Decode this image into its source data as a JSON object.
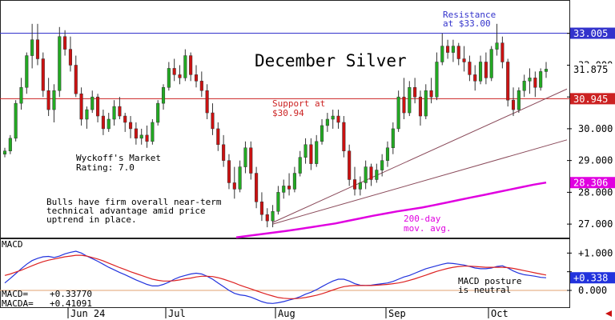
{
  "chart_data": {
    "type": "candlestick",
    "title": "December Silver",
    "x_labels": [
      "Jun 24",
      "Jul",
      "Aug",
      "Sep",
      "Oct"
    ],
    "y_ticks": [
      27.0,
      28.0,
      29.0,
      30.0,
      31.0,
      32.0,
      33.0
    ],
    "y_tick_labels": [
      "27.000",
      "28.000",
      "29.000",
      "30.000",
      "",
      "32.000",
      ""
    ],
    "ylim": [
      26.6,
      34.0
    ],
    "grid": false,
    "colors": {
      "up": "#22aa22",
      "down": "#cc1111",
      "ma": "#e000e0",
      "resistance": "#3333cc",
      "support": "#cc2222",
      "trend": "#8a4a5a"
    },
    "price_labels": {
      "resistance": {
        "value": 33.005,
        "text": "33.005"
      },
      "last": {
        "value": 31.875,
        "text": "31.875"
      },
      "support": {
        "value": 30.945,
        "text": "30.945"
      },
      "ma": {
        "value": 28.306,
        "text": "28.306"
      }
    },
    "annotations": {
      "resistance": [
        "Resistance",
        "at $33.00"
      ],
      "support": [
        "Support at",
        "$30.94"
      ],
      "wyckoff": [
        "Wyckoff's Market",
        "Rating: 7.0"
      ],
      "comment": [
        "Bulls have firm overall near-term",
        "technical advantage amid price",
        "uptrend in place."
      ],
      "ma": [
        "200-day",
        "mov. avg."
      ]
    },
    "candles": [
      [
        29.2,
        29.4,
        29.1,
        29.3
      ],
      [
        29.3,
        29.8,
        29.2,
        29.7
      ],
      [
        29.7,
        30.9,
        29.6,
        30.8
      ],
      [
        30.8,
        31.6,
        30.6,
        31.3
      ],
      [
        31.3,
        32.4,
        31.1,
        32.3
      ],
      [
        32.3,
        33.3,
        31.9,
        32.8
      ],
      [
        32.8,
        33.3,
        32.0,
        32.2
      ],
      [
        32.2,
        32.4,
        31.0,
        31.2
      ],
      [
        31.2,
        31.6,
        30.4,
        30.6
      ],
      [
        30.6,
        31.4,
        30.2,
        31.2
      ],
      [
        31.2,
        33.2,
        31.0,
        32.9
      ],
      [
        32.9,
        33.1,
        32.3,
        32.5
      ],
      [
        32.5,
        32.9,
        31.8,
        32.0
      ],
      [
        32.0,
        32.3,
        31.0,
        31.1
      ],
      [
        31.1,
        31.3,
        30.1,
        30.3
      ],
      [
        30.3,
        30.7,
        30.0,
        30.6
      ],
      [
        30.6,
        31.2,
        30.5,
        31.0
      ],
      [
        31.0,
        31.1,
        30.2,
        30.4
      ],
      [
        30.4,
        30.6,
        29.8,
        30.0
      ],
      [
        30.0,
        30.5,
        29.9,
        30.3
      ],
      [
        30.3,
        30.9,
        30.1,
        30.7
      ],
      [
        30.7,
        31.0,
        30.3,
        30.4
      ],
      [
        30.4,
        30.5,
        29.9,
        30.2
      ],
      [
        30.2,
        30.4,
        29.7,
        30.0
      ],
      [
        30.0,
        30.2,
        29.5,
        29.7
      ],
      [
        29.7,
        30.0,
        29.5,
        29.8
      ],
      [
        29.8,
        30.1,
        29.4,
        29.6
      ],
      [
        29.6,
        30.3,
        29.5,
        30.2
      ],
      [
        30.2,
        30.9,
        30.1,
        30.8
      ],
      [
        30.8,
        31.4,
        30.6,
        31.3
      ],
      [
        31.3,
        32.1,
        31.2,
        31.9
      ],
      [
        31.9,
        32.2,
        31.5,
        31.7
      ],
      [
        31.7,
        32.0,
        31.4,
        31.6
      ],
      [
        31.6,
        32.5,
        31.5,
        32.3
      ],
      [
        32.3,
        32.4,
        31.5,
        31.7
      ],
      [
        31.7,
        32.0,
        31.3,
        31.5
      ],
      [
        31.5,
        31.8,
        31.0,
        31.2
      ],
      [
        31.2,
        31.4,
        30.3,
        30.5
      ],
      [
        30.5,
        30.8,
        29.8,
        30.0
      ],
      [
        30.0,
        30.2,
        29.3,
        29.5
      ],
      [
        29.5,
        29.8,
        28.8,
        29.0
      ],
      [
        29.0,
        29.2,
        28.1,
        28.3
      ],
      [
        28.3,
        28.8,
        27.8,
        28.1
      ],
      [
        28.1,
        29.0,
        28.0,
        28.8
      ],
      [
        28.8,
        29.6,
        28.6,
        29.4
      ],
      [
        29.4,
        29.6,
        28.4,
        28.6
      ],
      [
        28.6,
        28.8,
        27.5,
        27.7
      ],
      [
        27.7,
        28.0,
        27.1,
        27.3
      ],
      [
        27.3,
        27.5,
        26.9,
        27.1
      ],
      [
        27.1,
        27.6,
        26.9,
        27.4
      ],
      [
        27.4,
        28.2,
        27.3,
        28.0
      ],
      [
        28.0,
        28.4,
        27.8,
        28.2
      ],
      [
        28.2,
        28.6,
        27.9,
        28.1
      ],
      [
        28.1,
        28.8,
        28.0,
        28.6
      ],
      [
        28.6,
        29.3,
        28.5,
        29.1
      ],
      [
        29.1,
        29.7,
        28.9,
        29.5
      ],
      [
        29.5,
        29.7,
        28.7,
        28.9
      ],
      [
        28.9,
        29.8,
        28.8,
        29.6
      ],
      [
        29.6,
        30.3,
        29.5,
        30.1
      ],
      [
        30.1,
        30.5,
        29.9,
        30.3
      ],
      [
        30.3,
        30.6,
        30.0,
        30.4
      ],
      [
        30.4,
        30.6,
        30.0,
        30.2
      ],
      [
        30.2,
        30.4,
        29.1,
        29.3
      ],
      [
        29.3,
        29.5,
        28.2,
        28.4
      ],
      [
        28.4,
        28.8,
        27.9,
        28.1
      ],
      [
        28.1,
        28.5,
        27.9,
        28.3
      ],
      [
        28.3,
        29.0,
        28.1,
        28.8
      ],
      [
        28.8,
        28.9,
        28.2,
        28.4
      ],
      [
        28.4,
        28.9,
        28.3,
        28.7
      ],
      [
        28.7,
        29.2,
        28.5,
        29.0
      ],
      [
        29.0,
        29.6,
        28.8,
        29.4
      ],
      [
        29.4,
        30.2,
        29.2,
        30.0
      ],
      [
        30.0,
        31.2,
        29.9,
        31.0
      ],
      [
        31.0,
        31.6,
        30.3,
        30.5
      ],
      [
        30.5,
        31.5,
        30.4,
        31.3
      ],
      [
        31.3,
        31.6,
        30.8,
        31.0
      ],
      [
        31.0,
        31.2,
        30.1,
        30.4
      ],
      [
        30.4,
        31.4,
        30.3,
        31.2
      ],
      [
        31.2,
        31.6,
        30.8,
        31.0
      ],
      [
        31.0,
        32.4,
        30.9,
        32.1
      ],
      [
        32.1,
        33.0,
        32.0,
        32.6
      ],
      [
        32.6,
        32.8,
        32.2,
        32.4
      ],
      [
        32.4,
        32.8,
        32.1,
        32.6
      ],
      [
        32.6,
        32.7,
        32.0,
        32.2
      ],
      [
        32.2,
        32.6,
        31.8,
        32.1
      ],
      [
        32.1,
        32.3,
        31.5,
        31.7
      ],
      [
        31.7,
        32.0,
        31.2,
        31.5
      ],
      [
        31.5,
        32.3,
        31.4,
        32.1
      ],
      [
        32.1,
        32.4,
        31.4,
        31.6
      ],
      [
        31.6,
        32.6,
        31.5,
        32.5
      ],
      [
        32.5,
        33.3,
        32.3,
        32.7
      ],
      [
        32.7,
        32.9,
        31.9,
        32.1
      ],
      [
        32.1,
        32.2,
        30.7,
        30.9
      ],
      [
        30.9,
        31.3,
        30.4,
        30.6
      ],
      [
        30.6,
        31.3,
        30.5,
        31.2
      ],
      [
        31.2,
        31.7,
        31.0,
        31.5
      ],
      [
        31.5,
        31.9,
        31.1,
        31.6
      ],
      [
        31.6,
        31.8,
        31.0,
        31.3
      ],
      [
        31.3,
        31.9,
        31.2,
        31.8
      ],
      [
        31.8,
        32.1,
        31.6,
        31.875
      ]
    ],
    "ma": [
      26.58,
      26.63,
      26.68,
      26.73,
      26.78,
      26.84,
      26.9,
      26.96,
      27.02,
      27.1,
      27.18,
      27.26,
      27.33,
      27.4,
      27.46,
      27.52,
      27.6,
      27.68,
      27.76,
      27.84,
      27.92,
      28.0,
      28.08,
      28.16,
      28.24,
      28.306
    ],
    "trend_lines": {
      "line1": [
        [
          27.05,
          49
        ],
        [
          31.25,
          100
        ]
      ],
      "line2": [
        [
          27.0,
          49
        ],
        [
          29.65,
          100
        ]
      ]
    },
    "macd": {
      "label": "MACD",
      "readout": [
        {
          "name": "MACD=",
          "value": "+0.33770"
        },
        {
          "name": "MACDA=",
          "value": "+0.41091"
        }
      ],
      "y_ticks": [
        0.0,
        0.5,
        1.0
      ],
      "y_tick_labels": [
        "0.000",
        "",
        "+1.000"
      ],
      "ylim": [
        -0.45,
        1.35
      ],
      "current": {
        "value": 0.338,
        "text": "+0.338"
      },
      "zero_value": 0.0,
      "note": [
        "MACD posture",
        "is neutral"
      ],
      "macd": [
        0.2,
        0.32,
        0.45,
        0.58,
        0.7,
        0.8,
        0.86,
        0.9,
        0.91,
        0.88,
        0.92,
        0.98,
        1.02,
        1.05,
        1.0,
        0.92,
        0.85,
        0.78,
        0.7,
        0.62,
        0.55,
        0.48,
        0.42,
        0.35,
        0.28,
        0.22,
        0.16,
        0.12,
        0.12,
        0.16,
        0.22,
        0.3,
        0.36,
        0.4,
        0.44,
        0.46,
        0.44,
        0.38,
        0.3,
        0.2,
        0.1,
        0.0,
        -0.08,
        -0.12,
        -0.14,
        -0.18,
        -0.24,
        -0.3,
        -0.34,
        -0.35,
        -0.33,
        -0.3,
        -0.26,
        -0.22,
        -0.17,
        -0.1,
        -0.05,
        0.02,
        0.1,
        0.18,
        0.25,
        0.3,
        0.3,
        0.25,
        0.18,
        0.14,
        0.13,
        0.14,
        0.16,
        0.18,
        0.2,
        0.24,
        0.3,
        0.36,
        0.4,
        0.46,
        0.52,
        0.58,
        0.62,
        0.66,
        0.7,
        0.73,
        0.72,
        0.7,
        0.68,
        0.64,
        0.6,
        0.58,
        0.58,
        0.6,
        0.64,
        0.66,
        0.6,
        0.52,
        0.46,
        0.42,
        0.4,
        0.38,
        0.35,
        0.338
      ],
      "signal": [
        0.4,
        0.44,
        0.49,
        0.54,
        0.6,
        0.66,
        0.72,
        0.77,
        0.81,
        0.84,
        0.87,
        0.9,
        0.92,
        0.94,
        0.94,
        0.92,
        0.88,
        0.84,
        0.79,
        0.73,
        0.67,
        0.61,
        0.56,
        0.5,
        0.45,
        0.4,
        0.35,
        0.3,
        0.27,
        0.25,
        0.25,
        0.26,
        0.28,
        0.31,
        0.33,
        0.36,
        0.38,
        0.38,
        0.37,
        0.34,
        0.3,
        0.25,
        0.2,
        0.14,
        0.09,
        0.04,
        -0.01,
        -0.06,
        -0.11,
        -0.15,
        -0.19,
        -0.21,
        -0.22,
        -0.22,
        -0.21,
        -0.19,
        -0.16,
        -0.13,
        -0.09,
        -0.04,
        0.01,
        0.06,
        0.1,
        0.12,
        0.13,
        0.13,
        0.13,
        0.13,
        0.14,
        0.15,
        0.16,
        0.18,
        0.2,
        0.23,
        0.27,
        0.31,
        0.36,
        0.41,
        0.46,
        0.51,
        0.55,
        0.59,
        0.62,
        0.64,
        0.65,
        0.65,
        0.64,
        0.63,
        0.62,
        0.62,
        0.62,
        0.62,
        0.61,
        0.59,
        0.56,
        0.53,
        0.5,
        0.47,
        0.44,
        0.41091
      ]
    }
  }
}
